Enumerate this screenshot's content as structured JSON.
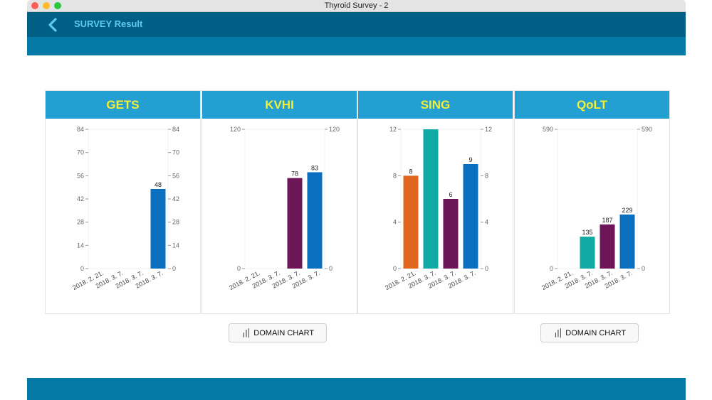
{
  "window": {
    "title": "Thyroid Survey - 2"
  },
  "header": {
    "title": "SURVEY Result",
    "back_icon": "chevron-left-icon"
  },
  "colors": {
    "header": "#005f84",
    "subbar": "#067aa7",
    "panel_head": "#23a0d1",
    "panel_title": "#f3ef38",
    "orange": "#e0651d",
    "teal": "#10aaa5",
    "purple": "#6c1657",
    "blue": "#0b6fc0"
  },
  "buttons": {
    "domain_chart_label": "DOMAIN CHART",
    "domain_chart_icon": "bar-chart-icon"
  },
  "chart_data": [
    {
      "type": "bar",
      "title": "GETS",
      "categories": [
        "2018. 2. 21.",
        "2018. 3. 7.",
        "2018. 3. 7.",
        "2018. 3. 7."
      ],
      "values": [
        null,
        null,
        null,
        48
      ],
      "value_labels": [
        "",
        "",
        "",
        "48"
      ],
      "colors": [
        "#e0651d",
        "#10aaa5",
        "#6c1657",
        "#0b6fc0"
      ],
      "ylim": [
        0,
        84
      ],
      "yticks": [
        "0",
        "14",
        "28",
        "42",
        "56",
        "70",
        "84"
      ],
      "right_axis": true
    },
    {
      "type": "bar",
      "title": "KVHI",
      "categories": [
        "2018. 2. 21.",
        "2018. 3. 7.",
        "2018. 3. 7.",
        "2018. 3. 7."
      ],
      "values": [
        null,
        null,
        78,
        83
      ],
      "value_labels": [
        "",
        "",
        "78",
        "83"
      ],
      "colors": [
        "#e0651d",
        "#10aaa5",
        "#6c1657",
        "#0b6fc0"
      ],
      "ylim": [
        0,
        120
      ],
      "yticks": [
        "0",
        "120"
      ],
      "right_axis": true
    },
    {
      "type": "bar",
      "title": "SING",
      "categories": [
        "2018. 2. 21.",
        "2018. 3. 7.",
        "2018. 3. 7.",
        "2018. 3. 7."
      ],
      "values": [
        8,
        12,
        6,
        9
      ],
      "value_labels": [
        "8",
        "",
        "6",
        "9"
      ],
      "colors": [
        "#e0651d",
        "#10aaa5",
        "#6c1657",
        "#0b6fc0"
      ],
      "ylim": [
        0,
        12
      ],
      "yticks": [
        "0",
        "4",
        "8",
        "12"
      ],
      "right_axis": true
    },
    {
      "type": "bar",
      "title": "QoLT",
      "categories": [
        "2018. 2. 21.",
        "2018. 3. 7.",
        "2018. 3. 7.",
        "2018. 3. 7."
      ],
      "values": [
        null,
        135,
        187,
        229
      ],
      "value_labels": [
        "",
        "135",
        "187",
        "229"
      ],
      "colors": [
        "#e0651d",
        "#10aaa5",
        "#6c1657",
        "#0b6fc0"
      ],
      "ylim": [
        0,
        590
      ],
      "yticks": [
        "0",
        "590"
      ],
      "right_axis": true
    }
  ]
}
